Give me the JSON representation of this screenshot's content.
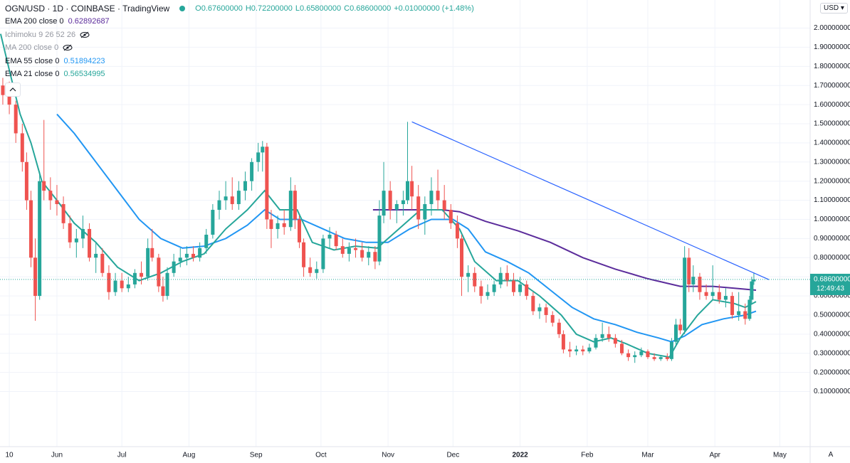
{
  "chart_data": {
    "type": "candlestick",
    "symbol": "OGN/USD · 1D · COINBASE · TradingView",
    "ohlc": [
      "O0.67600000",
      "H0.72200000",
      "L0.65800000",
      "C0.68600000",
      "+0.01000000 (+1.48%)"
    ],
    "currency": "USD",
    "auto_button": "A",
    "up_color": "#26a69a",
    "down_color": "#ef5350",
    "grid": true,
    "xlim": [
      -4.3,
      370
    ],
    "ylim": [
      -0.188,
      2.147
    ],
    "xticks": [
      {
        "value": 0,
        "label": "10"
      },
      {
        "value": 22,
        "label": "Jun"
      },
      {
        "value": 52,
        "label": "Jul"
      },
      {
        "value": 83,
        "label": "Aug"
      },
      {
        "value": 114,
        "label": "Sep"
      },
      {
        "value": 144,
        "label": "Oct"
      },
      {
        "value": 175,
        "label": "Nov"
      },
      {
        "value": 205,
        "label": "Dec"
      },
      {
        "value": 236,
        "label": "2022"
      },
      {
        "value": 267,
        "label": "Feb"
      },
      {
        "value": 295,
        "label": "Mar"
      },
      {
        "value": 326,
        "label": "Apr"
      },
      {
        "value": 356,
        "label": "May"
      }
    ],
    "yticks": [
      {
        "value": 0.1,
        "label": "0.10000000"
      },
      {
        "value": 0.2,
        "label": "0.20000000"
      },
      {
        "value": 0.3,
        "label": "0.30000000"
      },
      {
        "value": 0.4,
        "label": "0.40000000"
      },
      {
        "value": 0.5,
        "label": "0.50000000"
      },
      {
        "value": 0.6,
        "label": "0.60000000"
      },
      {
        "value": 0.7,
        "label": "0.70000000"
      },
      {
        "value": 0.8,
        "label": "0.80000000"
      },
      {
        "value": 0.9,
        "label": "0.90000000"
      },
      {
        "value": 1.0,
        "label": "1.00000000"
      },
      {
        "value": 1.1,
        "label": "1.10000000"
      },
      {
        "value": 1.2,
        "label": "1.20000000"
      },
      {
        "value": 1.3,
        "label": "1.30000000"
      },
      {
        "value": 1.4,
        "label": "1.40000000"
      },
      {
        "value": 1.5,
        "label": "1.50000000"
      },
      {
        "value": 1.6,
        "label": "1.60000000"
      },
      {
        "value": 1.7,
        "label": "1.70000000"
      },
      {
        "value": 1.8,
        "label": "1.80000000"
      },
      {
        "value": 1.9,
        "label": "1.90000000"
      },
      {
        "value": 2.0,
        "label": "2.00000000"
      }
    ],
    "x": [
      -3,
      0,
      3,
      6,
      8,
      10,
      12,
      14,
      16,
      19,
      22,
      25,
      28,
      31,
      34,
      37,
      40,
      43,
      46,
      49,
      52,
      55,
      58,
      61,
      64,
      66,
      69,
      71,
      73,
      76,
      79,
      82,
      85,
      88,
      91,
      94,
      97,
      100,
      103,
      106,
      109,
      112,
      115,
      117,
      119,
      121,
      124,
      127,
      130,
      132,
      134,
      136,
      139,
      142,
      145,
      148,
      151,
      154,
      157,
      160,
      163,
      166,
      169,
      171,
      173,
      176,
      179,
      182,
      184,
      186,
      189,
      192,
      195,
      198,
      201,
      204,
      207,
      209,
      212,
      215,
      218,
      221,
      224,
      227,
      230,
      233,
      236,
      239,
      242,
      245,
      248,
      251,
      254,
      256,
      259,
      262,
      265,
      268,
      271,
      274,
      277,
      280,
      283,
      286,
      289,
      292,
      295,
      298,
      301,
      304,
      306,
      308,
      310,
      312,
      314,
      316,
      319,
      322,
      325,
      328,
      331,
      334,
      337,
      340,
      342,
      343,
      344
    ],
    "open": [
      1.7,
      1.65,
      1.6,
      1.45,
      1.3,
      1.1,
      0.8,
      0.6,
      1.2,
      1.15,
      1.1,
      1.08,
      0.98,
      0.88,
      0.9,
      0.95,
      0.8,
      0.82,
      0.72,
      0.62,
      0.68,
      0.64,
      0.66,
      0.72,
      0.7,
      0.85,
      0.8,
      0.65,
      0.6,
      0.72,
      0.78,
      0.8,
      0.82,
      0.8,
      0.85,
      0.92,
      1.05,
      1.1,
      1.12,
      1.08,
      1.15,
      1.2,
      1.3,
      1.35,
      1.38,
      1.0,
      0.95,
      0.98,
      0.96,
      1.15,
      1.0,
      0.88,
      0.75,
      0.72,
      0.74,
      0.9,
      0.92,
      0.86,
      0.82,
      0.85,
      0.84,
      0.8,
      0.83,
      0.78,
      1.02,
      1.15,
      1.05,
      1.08,
      1.1,
      1.2,
      1.12,
      1.0,
      1.08,
      1.15,
      1.1,
      1.05,
      0.98,
      0.9,
      0.7,
      0.72,
      0.65,
      0.6,
      0.62,
      0.66,
      0.72,
      0.68,
      0.62,
      0.66,
      0.6,
      0.52,
      0.54,
      0.5,
      0.46,
      0.4,
      0.32,
      0.31,
      0.32,
      0.31,
      0.33,
      0.38,
      0.4,
      0.38,
      0.35,
      0.3,
      0.28,
      0.29,
      0.31,
      0.28,
      0.27,
      0.28,
      0.27,
      0.36,
      0.45,
      0.42,
      0.8,
      0.66,
      0.7,
      0.62,
      0.6,
      0.62,
      0.58,
      0.6,
      0.5,
      0.52,
      0.48,
      0.58,
      0.676
    ],
    "high": [
      1.74,
      1.72,
      1.62,
      1.5,
      1.35,
      1.15,
      0.9,
      1.25,
      1.52,
      1.22,
      1.18,
      1.12,
      1.02,
      0.95,
      1.02,
      0.98,
      0.88,
      0.85,
      0.76,
      0.72,
      0.72,
      0.7,
      0.74,
      0.78,
      0.9,
      0.95,
      0.82,
      0.7,
      0.75,
      0.82,
      0.85,
      0.86,
      0.86,
      0.88,
      0.95,
      1.08,
      1.15,
      1.2,
      1.22,
      1.2,
      1.25,
      1.32,
      1.4,
      1.41,
      1.4,
      1.05,
      1.02,
      1.05,
      1.22,
      1.18,
      1.02,
      0.9,
      0.8,
      0.78,
      0.92,
      0.96,
      0.94,
      0.9,
      0.88,
      0.9,
      0.88,
      0.86,
      0.86,
      1.1,
      1.3,
      1.2,
      1.1,
      1.15,
      1.51,
      1.28,
      1.18,
      1.12,
      1.22,
      1.26,
      1.18,
      1.08,
      1.02,
      0.92,
      0.76,
      0.75,
      0.68,
      0.66,
      0.68,
      0.75,
      0.76,
      0.72,
      0.7,
      0.68,
      0.62,
      0.56,
      0.56,
      0.52,
      0.48,
      0.42,
      0.36,
      0.34,
      0.34,
      0.35,
      0.4,
      0.46,
      0.44,
      0.4,
      0.37,
      0.32,
      0.31,
      0.33,
      0.32,
      0.3,
      0.29,
      0.3,
      0.38,
      0.48,
      0.48,
      0.86,
      0.85,
      0.76,
      0.72,
      0.66,
      0.76,
      0.66,
      0.64,
      0.62,
      0.62,
      0.56,
      0.6,
      0.7,
      0.722
    ],
    "low": [
      1.6,
      1.55,
      1.4,
      1.25,
      1.05,
      0.75,
      0.47,
      0.58,
      1.1,
      1.05,
      1.02,
      0.95,
      0.85,
      0.8,
      0.85,
      0.78,
      0.72,
      0.7,
      0.58,
      0.6,
      0.62,
      0.62,
      0.64,
      0.66,
      0.68,
      0.78,
      0.62,
      0.57,
      0.58,
      0.7,
      0.75,
      0.76,
      0.78,
      0.78,
      0.82,
      0.9,
      1.0,
      1.05,
      1.05,
      1.05,
      1.1,
      1.15,
      1.25,
      1.25,
      0.95,
      0.85,
      0.9,
      0.92,
      0.94,
      0.95,
      0.85,
      0.7,
      0.7,
      0.69,
      0.72,
      0.85,
      0.84,
      0.8,
      0.78,
      0.8,
      0.78,
      0.76,
      0.74,
      0.76,
      0.98,
      1.0,
      0.98,
      1.02,
      1.08,
      1.05,
      0.95,
      0.92,
      1.02,
      1.05,
      1.0,
      0.95,
      0.85,
      0.6,
      0.62,
      0.62,
      0.56,
      0.58,
      0.6,
      0.64,
      0.65,
      0.6,
      0.6,
      0.58,
      0.5,
      0.48,
      0.46,
      0.44,
      0.38,
      0.3,
      0.28,
      0.29,
      0.29,
      0.3,
      0.32,
      0.36,
      0.36,
      0.33,
      0.29,
      0.26,
      0.25,
      0.28,
      0.27,
      0.26,
      0.26,
      0.26,
      0.26,
      0.34,
      0.4,
      0.4,
      0.62,
      0.62,
      0.58,
      0.58,
      0.58,
      0.56,
      0.54,
      0.48,
      0.47,
      0.45,
      0.47,
      0.56,
      0.658
    ],
    "close": [
      1.65,
      1.6,
      1.45,
      1.3,
      1.1,
      0.8,
      0.6,
      1.2,
      1.15,
      1.1,
      1.08,
      0.98,
      0.88,
      0.9,
      0.95,
      0.8,
      0.82,
      0.72,
      0.62,
      0.68,
      0.64,
      0.66,
      0.72,
      0.7,
      0.85,
      0.8,
      0.65,
      0.6,
      0.72,
      0.78,
      0.8,
      0.82,
      0.8,
      0.85,
      0.92,
      1.05,
      1.1,
      1.12,
      1.08,
      1.15,
      1.2,
      1.3,
      1.35,
      1.38,
      1.0,
      0.95,
      0.98,
      0.96,
      1.15,
      1.0,
      0.88,
      0.75,
      0.72,
      0.74,
      0.9,
      0.92,
      0.86,
      0.82,
      0.85,
      0.84,
      0.8,
      0.83,
      0.78,
      1.02,
      1.15,
      1.05,
      1.08,
      1.1,
      1.2,
      1.12,
      1.0,
      1.08,
      1.15,
      1.1,
      1.05,
      0.98,
      0.9,
      0.7,
      0.72,
      0.65,
      0.6,
      0.62,
      0.66,
      0.72,
      0.68,
      0.62,
      0.66,
      0.6,
      0.52,
      0.54,
      0.5,
      0.46,
      0.4,
      0.32,
      0.31,
      0.32,
      0.31,
      0.33,
      0.38,
      0.4,
      0.38,
      0.35,
      0.3,
      0.28,
      0.29,
      0.31,
      0.28,
      0.27,
      0.28,
      0.27,
      0.36,
      0.45,
      0.42,
      0.8,
      0.66,
      0.7,
      0.62,
      0.6,
      0.62,
      0.58,
      0.6,
      0.5,
      0.52,
      0.48,
      0.58,
      0.676,
      0.686
    ],
    "indicators": [
      {
        "name": "EMA 200 close 0",
        "value": 0.62892687,
        "color": "#5b2c9b",
        "x": [
          168,
          180,
          190,
          200,
          208,
          220,
          235,
          250,
          265,
          280,
          295,
          310,
          325,
          335,
          345
        ],
        "values": [
          1.05,
          1.05,
          1.05,
          1.05,
          1.04,
          0.99,
          0.94,
          0.88,
          0.8,
          0.74,
          0.69,
          0.65,
          0.65,
          0.64,
          0.63
        ]
      },
      {
        "name": "Ichimoku 9 26 52 26",
        "hidden": true
      },
      {
        "name": "MA 200 close 0",
        "hidden": true
      },
      {
        "name": "EMA 55 close 0",
        "value": 0.51894223,
        "color": "#2196f3",
        "x": [
          22,
          30,
          40,
          50,
          60,
          70,
          80,
          90,
          100,
          110,
          118,
          125,
          135,
          145,
          155,
          165,
          175,
          185,
          195,
          205,
          212,
          220,
          230,
          240,
          250,
          260,
          270,
          280,
          290,
          300,
          306,
          312,
          320,
          330,
          340,
          345
        ],
        "values": [
          1.55,
          1.45,
          1.3,
          1.15,
          1.0,
          0.9,
          0.85,
          0.86,
          0.9,
          0.97,
          1.05,
          1.0,
          1.0,
          0.95,
          0.9,
          0.88,
          0.88,
          0.95,
          1.0,
          1.0,
          0.95,
          0.83,
          0.78,
          0.72,
          0.63,
          0.54,
          0.48,
          0.45,
          0.41,
          0.38,
          0.36,
          0.39,
          0.45,
          0.48,
          0.5,
          0.52
        ]
      },
      {
        "name": "EMA 21 close 0",
        "value": 0.56534995,
        "color": "#26a69a",
        "x": [
          -4,
          0,
          5,
          10,
          15,
          22,
          30,
          40,
          50,
          60,
          70,
          80,
          90,
          100,
          110,
          118,
          125,
          133,
          140,
          150,
          160,
          170,
          180,
          190,
          200,
          208,
          215,
          225,
          235,
          245,
          255,
          262,
          270,
          278,
          285,
          295,
          305,
          310,
          318,
          325,
          335,
          340,
          345
        ],
        "values": [
          1.97,
          1.78,
          1.55,
          1.4,
          1.2,
          1.1,
          0.98,
          0.88,
          0.75,
          0.68,
          0.72,
          0.78,
          0.82,
          0.95,
          1.05,
          1.15,
          1.05,
          1.05,
          0.88,
          0.84,
          0.86,
          0.85,
          0.95,
          1.05,
          1.05,
          0.95,
          0.78,
          0.68,
          0.68,
          0.6,
          0.5,
          0.4,
          0.36,
          0.38,
          0.35,
          0.3,
          0.28,
          0.38,
          0.5,
          0.58,
          0.56,
          0.54,
          0.57
        ]
      }
    ],
    "trendline": {
      "x": [
        186,
        351
      ],
      "values": [
        1.51,
        0.685
      ],
      "color": "#2962ff"
    },
    "last_price": {
      "value": 0.686,
      "label": "0.68600000"
    },
    "countdown": "12:49:43"
  }
}
